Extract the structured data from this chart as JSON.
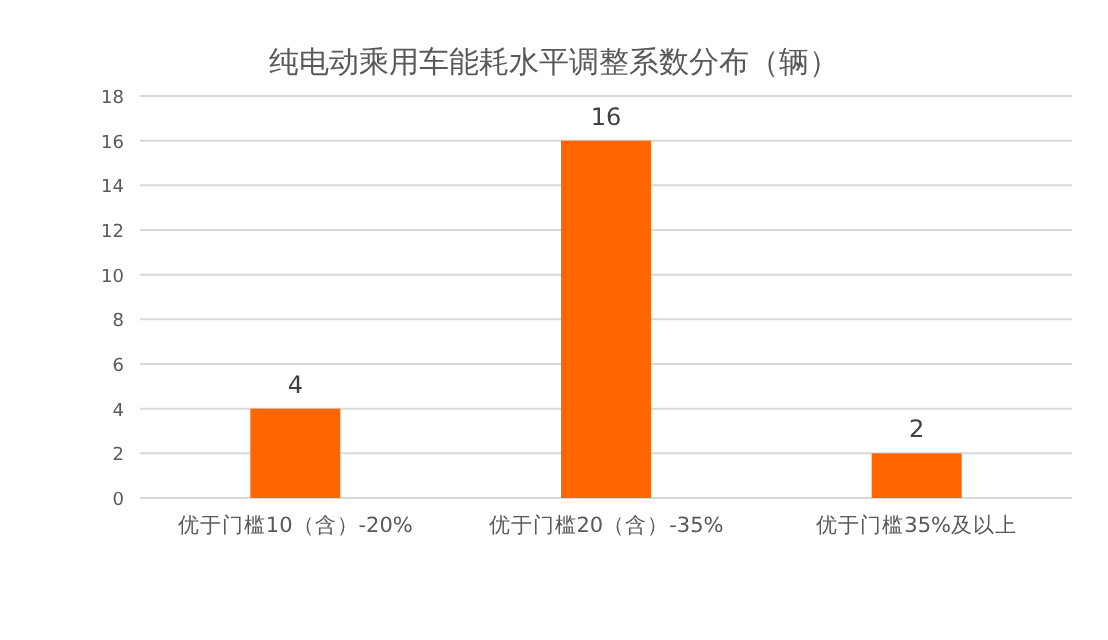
{
  "chart_data": {
    "type": "bar",
    "title": "纯电动乘用车能耗水平调整系数分布（辆）",
    "categories": [
      "优于门槛10（含）-20%",
      "优于门槛20（含）-35%",
      "优于门槛35%及以上"
    ],
    "values": [
      4,
      16,
      2
    ],
    "color": "#ff6600",
    "ylim": [
      0,
      18
    ],
    "yticks": [
      0,
      2,
      4,
      6,
      8,
      10,
      12,
      14,
      16,
      18
    ],
    "grid": "y",
    "data_labels": true
  }
}
